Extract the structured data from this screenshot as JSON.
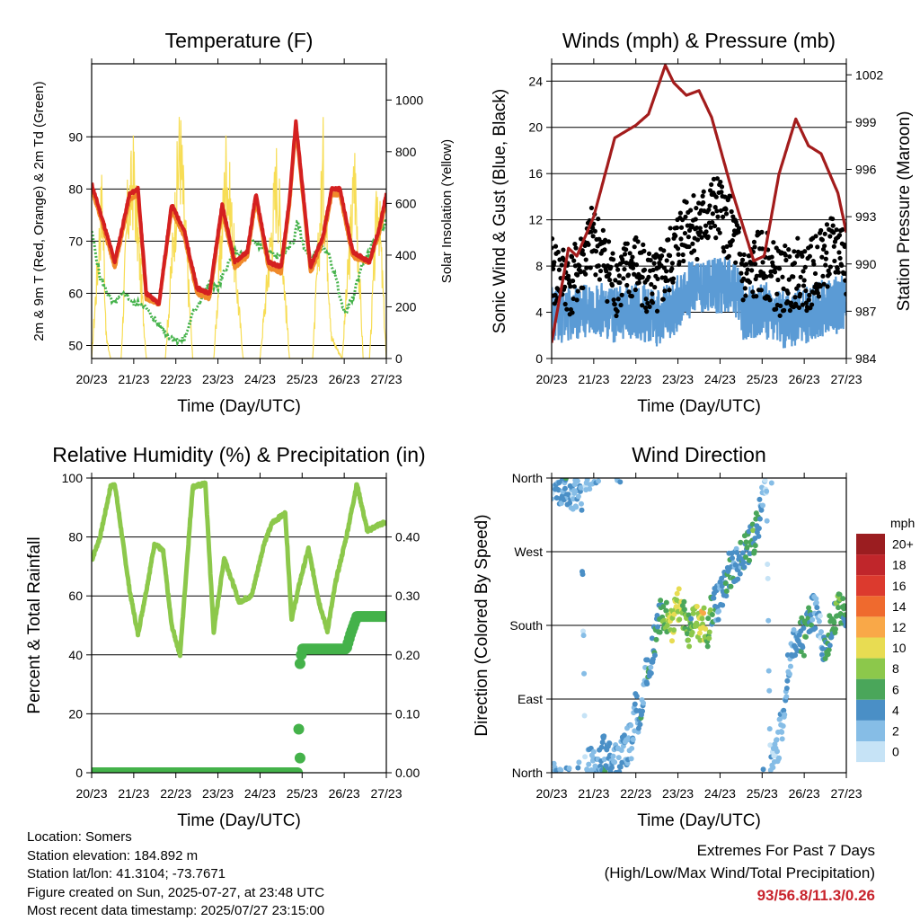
{
  "colors": {
    "temp_2m": "#d42020",
    "temp_9m": "#f08a2a",
    "dewpoint": "#44b24a",
    "solar": "#f7dd55",
    "wind": "#5b9bd5",
    "gust": "#000000",
    "pressure": "#a31c1c",
    "humidity": "#8cc84b",
    "precip": "#44b24a",
    "extremes": "#c8232c"
  },
  "footer": {
    "location": "Location: Somers",
    "elevation": "Station elevation: 184.892 m",
    "latlon": "Station lat/lon: 41.3104; -73.7671",
    "created": "Figure created on Sun, 2025-07-27, at 23:48 UTC",
    "recent": "Most recent data timestamp: 2025/07/27 23:15:00",
    "extremes_title": "Extremes For Past 7 Days",
    "extremes_subtitle": "(High/Low/Max Wind/Total Precipitation)",
    "extremes_values": "93/56.8/11.3/0.26"
  },
  "chart_data": [
    {
      "type": "line",
      "title": "Temperature (F)",
      "xlabel": "Time (Day/UTC)",
      "ylabel": "2m & 9m T (Red, Orange) & 2m Td (Green)",
      "y2label": "Solar Insolation (Yellow)",
      "x_ticks": [
        "20/23",
        "21/23",
        "22/23",
        "23/23",
        "24/23",
        "25/23",
        "26/23",
        "27/23"
      ],
      "xlim": [
        0,
        7
      ],
      "ylim": [
        47.5,
        104
      ],
      "y_ticks": [
        50,
        60,
        70,
        80,
        90
      ],
      "y2lim": [
        0,
        1140
      ],
      "y2_ticks": [
        0,
        200,
        400,
        600,
        800,
        1000
      ],
      "grid": "horizontal",
      "series": [
        {
          "name": "2m T",
          "x": [
            0,
            0.3,
            0.55,
            0.9,
            1.1,
            1.3,
            1.6,
            1.9,
            2.2,
            2.5,
            2.8,
            3.1,
            3.4,
            3.7,
            3.9,
            4.2,
            4.5,
            4.7,
            4.85,
            5.0,
            5.2,
            5.5,
            5.7,
            5.9,
            6.2,
            6.6,
            6.85,
            7
          ],
          "values": [
            81,
            73,
            66,
            79,
            80,
            60,
            58,
            77,
            72,
            61,
            60,
            77,
            66,
            68,
            79,
            66,
            65,
            78,
            93,
            81,
            65,
            71,
            80,
            80,
            68,
            66,
            73,
            79
          ]
        },
        {
          "name": "9m T",
          "x": [
            0,
            0.3,
            0.55,
            0.9,
            1.1,
            1.3,
            1.6,
            1.9,
            2.2,
            2.5,
            2.8,
            3.1,
            3.4,
            3.7,
            3.9,
            4.2,
            4.5,
            4.7,
            4.85,
            5.0,
            5.2,
            5.5,
            5.7,
            5.9,
            6.2,
            6.6,
            6.85,
            7
          ],
          "values": [
            80,
            72,
            65,
            78,
            79,
            59,
            58,
            76,
            71,
            60,
            59,
            76,
            65,
            67,
            78,
            65,
            64,
            77,
            92,
            80,
            64,
            70,
            79,
            79,
            67,
            66,
            72,
            78
          ]
        },
        {
          "name": "2m Td",
          "x": [
            0,
            0.2,
            0.5,
            0.8,
            1.0,
            1.2,
            1.4,
            1.6,
            1.8,
            2.0,
            2.2,
            2.4,
            2.6,
            2.8,
            3.0,
            3.2,
            3.4,
            3.6,
            3.8,
            4.0,
            4.2,
            4.4,
            4.6,
            4.8,
            4.9,
            5.0,
            5.2,
            5.4,
            5.6,
            5.8,
            6.0,
            6.2,
            6.4,
            6.6,
            6.8,
            7
          ],
          "values": [
            72,
            63,
            58,
            60,
            58,
            58,
            56,
            54,
            52,
            51,
            51,
            56,
            59,
            62,
            61,
            65,
            68,
            67,
            70,
            69,
            68,
            67,
            68,
            70,
            74,
            70,
            66,
            69,
            68,
            63,
            56,
            59,
            65,
            68,
            71,
            74
          ]
        },
        {
          "name": "Solar",
          "x": [
            0,
            0.25,
            0.35,
            0.45,
            0.7,
            0.85,
            1.0,
            1.3,
            1.75,
            2.1,
            2.4,
            2.9,
            3.2,
            3.6,
            4.0,
            4.4,
            4.7,
            4.95,
            5.25,
            5.5,
            5.7,
            5.95,
            6.25,
            6.45,
            6.6,
            6.8,
            7
          ],
          "values": [
            0,
            800,
            100,
            0,
            0,
            700,
            900,
            0,
            0,
            1060,
            0,
            0,
            960,
            0,
            0,
            900,
            0,
            0,
            0,
            950,
            100,
            0,
            900,
            0,
            0,
            820,
            0
          ]
        }
      ]
    },
    {
      "type": "line",
      "title": "Winds (mph) & Pressure (mb)",
      "xlabel": "Time (Day/UTC)",
      "ylabel": "Sonic Wind & Gust (Blue, Black)",
      "y2label": "Station Pressure (Maroon)",
      "x_ticks": [
        "20/23",
        "21/23",
        "22/23",
        "23/23",
        "24/23",
        "25/23",
        "26/23",
        "27/23"
      ],
      "xlim": [
        0,
        7
      ],
      "ylim": [
        0,
        25.5
      ],
      "y_ticks": [
        0,
        4,
        8,
        12,
        16,
        20,
        24
      ],
      "y2lim": [
        984,
        1002.7
      ],
      "y2_ticks": [
        984,
        987,
        990,
        993,
        996,
        999,
        1002
      ],
      "grid": "horizontal",
      "series": [
        {
          "name": "Wind",
          "x": [
            0,
            0.5,
            1.0,
            1.5,
            2.0,
            2.5,
            2.9,
            3.2,
            3.5,
            3.9,
            4.3,
            4.6,
            5.0,
            5.4,
            5.8,
            6.1,
            6.5,
            6.9,
            7
          ],
          "values": [
            4.0,
            3.6,
            4.6,
            3.8,
            4.2,
            3.5,
            4.4,
            5.8,
            6.4,
            6.2,
            6.6,
            3.6,
            4.4,
            3.3,
            3.6,
            3.8,
            4.5,
            4.8,
            4.2
          ]
        },
        {
          "name": "Gust",
          "x": [
            0,
            0.5,
            1.0,
            1.5,
            2.0,
            2.5,
            2.9,
            3.2,
            3.5,
            3.9,
            4.3,
            4.6,
            5.0,
            5.4,
            5.8,
            6.1,
            6.5,
            6.9,
            7
          ],
          "values": [
            7.5,
            6.5,
            10.5,
            6.5,
            8.0,
            6.0,
            9.0,
            12.0,
            11.5,
            13.0,
            11.0,
            6.5,
            8.5,
            6.5,
            7.5,
            7.0,
            9.0,
            9.5,
            7.0
          ]
        },
        {
          "name": "Pressure",
          "x": [
            0,
            0.1,
            0.4,
            0.6,
            1.0,
            1.5,
            2.0,
            2.3,
            2.7,
            2.9,
            3.2,
            3.5,
            3.8,
            4.3,
            4.8,
            5.05,
            5.4,
            5.8,
            6.1,
            6.4,
            6.8,
            7
          ],
          "values": [
            985,
            986.5,
            991,
            990.5,
            993,
            998,
            998.8,
            999.5,
            1002.6,
            1001.5,
            1000.7,
            1001,
            999.3,
            994.5,
            990.2,
            990.5,
            995.7,
            999.2,
            997.5,
            997,
            994.5,
            992
          ]
        }
      ]
    },
    {
      "type": "line",
      "title": "Relative Humidity (%) & Precipitation (in)",
      "xlabel": "Time (Day/UTC)",
      "ylabel": "Percent & Total Rainfall",
      "x_ticks": [
        "20/23",
        "21/23",
        "22/23",
        "23/23",
        "24/23",
        "25/23",
        "26/23",
        "27/23"
      ],
      "xlim": [
        0,
        7
      ],
      "ylim": [
        0,
        100
      ],
      "y_ticks": [
        0,
        20,
        40,
        60,
        80,
        100
      ],
      "y2lim": [
        0,
        0.5
      ],
      "y2_ticks": [
        "0.00",
        "0.10",
        "0.20",
        "0.30",
        "0.40"
      ],
      "grid": "horizontal",
      "series": [
        {
          "name": "RH",
          "x": [
            0,
            0.2,
            0.45,
            0.55,
            0.9,
            1.1,
            1.3,
            1.5,
            1.7,
            1.9,
            2.1,
            2.4,
            2.7,
            2.9,
            3.15,
            3.5,
            3.8,
            4.1,
            4.3,
            4.6,
            4.75,
            4.95,
            5.15,
            5.4,
            5.6,
            5.8,
            6.05,
            6.3,
            6.55,
            6.8,
            7
          ],
          "values": [
            72,
            80,
            97,
            98,
            62,
            47,
            62,
            78,
            75,
            50,
            40,
            97,
            98,
            48,
            73,
            58,
            60,
            78,
            85,
            88,
            52,
            65,
            76,
            58,
            48,
            65,
            80,
            98,
            82,
            84,
            85
          ]
        },
        {
          "name": "Precip",
          "x": [
            0,
            4.9,
            4.95,
            5.0,
            5.1,
            5.3,
            5.5,
            5.8,
            6.05,
            6.15,
            6.3,
            6.5,
            7
          ],
          "values": [
            0,
            0,
            0.185,
            0.21,
            0.21,
            0.21,
            0.21,
            0.21,
            0.21,
            0.235,
            0.265,
            0.265,
            0.265
          ]
        }
      ]
    },
    {
      "type": "scatter",
      "title": "Wind Direction",
      "xlabel": "Time (Day/UTC)",
      "ylabel": "Direction (Colored By Speed)",
      "x_ticks": [
        "20/23",
        "21/23",
        "22/23",
        "23/23",
        "24/23",
        "25/23",
        "26/23",
        "27/23"
      ],
      "xlim": [
        0,
        7
      ],
      "ylim": [
        0,
        360
      ],
      "y_ticks": [
        "North",
        "East",
        "South",
        "West",
        "North"
      ],
      "grid": "horizontal",
      "colorbar": {
        "title": "mph",
        "labels": [
          "20+",
          "18",
          "16",
          "14",
          "12",
          "10",
          "8",
          "6",
          "4",
          "2",
          "0"
        ],
        "colors": [
          "#9b1d20",
          "#c0262b",
          "#dc3a2e",
          "#ef6a2e",
          "#f9a848",
          "#e8dc52",
          "#8cc84b",
          "#4aa65a",
          "#4a8fc6",
          "#86bde6",
          "#c6e3f6"
        ]
      },
      "series": [
        {
          "name": "Direction",
          "x": [
            0.05,
            0.2,
            0.35,
            0.5,
            0.7,
            0.8,
            0.95,
            1.05,
            1.15,
            1.3,
            1.45,
            1.6,
            1.75,
            1.9,
            2.0,
            2.1,
            2.2,
            2.3,
            2.4,
            2.5,
            2.6,
            2.75,
            2.85,
            2.95,
            3.05,
            3.2,
            3.3,
            3.4,
            3.5,
            3.6,
            3.7,
            3.8,
            3.9,
            4.0,
            4.1,
            4.2,
            4.3,
            4.4,
            4.5,
            4.6,
            4.8,
            4.9,
            5.0,
            5.1,
            5.2,
            5.3,
            5.4,
            5.5,
            5.6,
            5.7,
            5.8,
            5.9,
            6.0,
            6.1,
            6.2,
            6.3,
            6.4,
            6.5,
            6.6,
            6.7,
            6.8,
            6.9,
            7.0
          ],
          "values": [
            350,
            345,
            350,
            340,
            355,
            5,
            10,
            15,
            20,
            25,
            20,
            10,
            30,
            40,
            80,
            60,
            110,
            130,
            150,
            170,
            200,
            190,
            180,
            210,
            200,
            180,
            170,
            190,
            185,
            180,
            175,
            200,
            205,
            210,
            230,
            245,
            250,
            255,
            260,
            270,
            290,
            300,
            350,
            340,
            10,
            25,
            40,
            70,
            120,
            150,
            160,
            170,
            165,
            180,
            195,
            190,
            170,
            150,
            175,
            190,
            200,
            195,
            185
          ],
          "speed": [
            2,
            3,
            4,
            2,
            3,
            1,
            2,
            2,
            3,
            4,
            2,
            3,
            3,
            2,
            3,
            4,
            3,
            4,
            3,
            5,
            6,
            8,
            9,
            10,
            9,
            7,
            6,
            8,
            9,
            10,
            7,
            6,
            4,
            3,
            4,
            5,
            4,
            3,
            4,
            5,
            6,
            5,
            2,
            1,
            2,
            1,
            3,
            2,
            3,
            4,
            3,
            4,
            6,
            5,
            4,
            3,
            2,
            4,
            5,
            6,
            7,
            6,
            5
          ]
        }
      ]
    }
  ]
}
